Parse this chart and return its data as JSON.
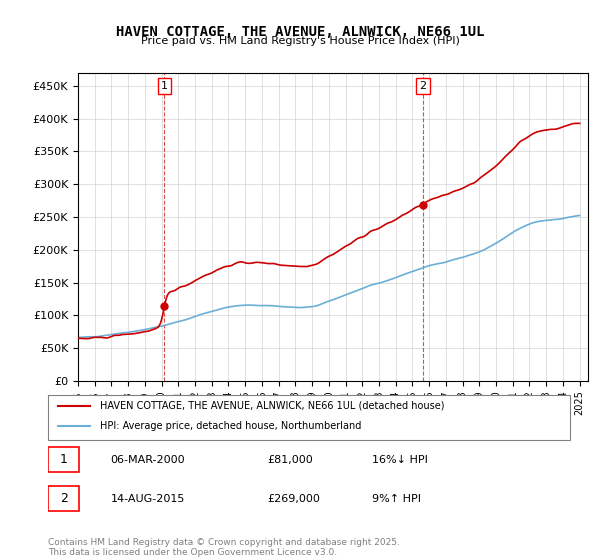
{
  "title": "HAVEN COTTAGE, THE AVENUE, ALNWICK, NE66 1UL",
  "subtitle": "Price paid vs. HM Land Registry's House Price Index (HPI)",
  "sale1_date": "06-MAR-2000",
  "sale1_price": 81000,
  "sale1_label": "1",
  "sale1_pct": "16%↓ HPI",
  "sale2_date": "14-AUG-2015",
  "sale2_price": 269000,
  "sale2_label": "2",
  "sale2_pct": "9%↑ HPI",
  "legend_property": "HAVEN COTTAGE, THE AVENUE, ALNWICK, NE66 1UL (detached house)",
  "legend_hpi": "HPI: Average price, detached house, Northumberland",
  "footnote": "Contains HM Land Registry data © Crown copyright and database right 2025.\nThis data is licensed under the Open Government Licence v3.0.",
  "property_color": "#cc0000",
  "hpi_color": "#6baed6",
  "vline_color": "#cc0000",
  "ylim": [
    0,
    470000
  ],
  "yticks": [
    0,
    50000,
    100000,
    150000,
    200000,
    250000,
    300000,
    350000,
    400000,
    450000
  ],
  "start_year": 1995,
  "end_year": 2025
}
